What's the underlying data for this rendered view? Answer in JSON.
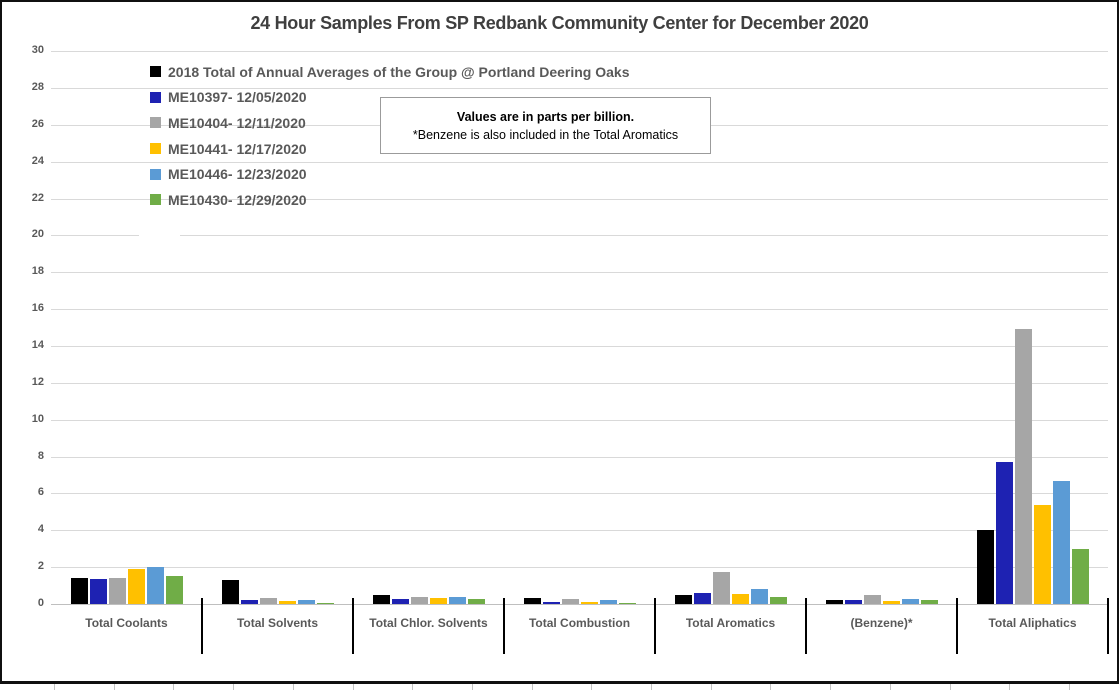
{
  "title": "24 Hour Samples From SP Redbank Community Center for December 2020",
  "note": {
    "line1": "Values are in parts per billion.",
    "line2": "*Benzene is also included in the Total Aromatics"
  },
  "chart_data": {
    "type": "bar",
    "title": "24 Hour Samples From SP Redbank Community Center for December 2020",
    "value_unit": "parts per billion",
    "categories": [
      "Total Coolants",
      "Total Solvents",
      "Total Chlor. Solvents",
      "Total Combustion",
      "Total Aromatics",
      "(Benzene)*",
      "Total Aliphatics"
    ],
    "series": [
      {
        "name": "2018 Total of Annual Averages of the Group @ Portland Deering Oaks",
        "color": "#000000",
        "values": [
          1.4,
          1.3,
          0.5,
          0.35,
          0.5,
          0.2,
          4.0
        ]
      },
      {
        "name": "ME10397- 12/05/2020",
        "color": "#1e22b2",
        "values": [
          1.35,
          0.2,
          0.3,
          0.1,
          0.6,
          0.2,
          7.7
        ]
      },
      {
        "name": "ME10404- 12/11/2020",
        "color": "#a6a6a6",
        "values": [
          1.4,
          0.35,
          0.4,
          0.25,
          1.75,
          0.5,
          14.9
        ]
      },
      {
        "name": "ME10441- 12/17/2020",
        "color": "#ffc000",
        "values": [
          1.9,
          0.15,
          0.35,
          0.1,
          0.55,
          0.15,
          5.4
        ]
      },
      {
        "name": "ME10446- 12/23/2020",
        "color": "#5b9bd5",
        "values": [
          2.0,
          0.2,
          0.4,
          0.2,
          0.8,
          0.3,
          6.7
        ]
      },
      {
        "name": "ME10430- 12/29/2020",
        "color": "#70ad47",
        "values": [
          1.5,
          0.05,
          0.25,
          0.08,
          0.4,
          0.2,
          3.0
        ]
      }
    ],
    "ylim": [
      0,
      30
    ],
    "ytick_step": 2,
    "yticks": [
      30,
      28,
      26,
      24,
      22,
      20,
      18,
      16,
      14,
      12,
      10,
      8,
      6,
      4,
      2,
      0
    ],
    "grid": true,
    "legend_position": "top-left-inside",
    "text_colors": {
      "title": "#3f3f3f",
      "labels": "#595959",
      "gridline": "#d9d9d9"
    }
  }
}
